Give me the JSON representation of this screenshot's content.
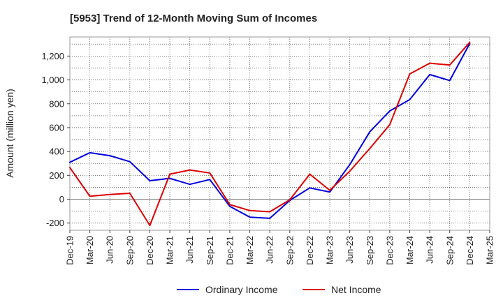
{
  "chart_data": {
    "type": "line",
    "title": "[5953]  Trend of 12-Month Moving Sum of Incomes",
    "xlabel": "",
    "ylabel": "Amount (million yen)",
    "ylim": [
      -260,
      1360
    ],
    "yticks": [
      -200,
      0,
      200,
      400,
      600,
      800,
      1000,
      1200
    ],
    "ytick_labels": [
      "-200",
      "0",
      "200",
      "400",
      "600",
      "800",
      "1,000",
      "1,200"
    ],
    "categories": [
      "Dec-19",
      "Mar-20",
      "Jun-20",
      "Sep-20",
      "Dec-20",
      "Mar-21",
      "Jun-21",
      "Sep-21",
      "Dec-21",
      "Mar-22",
      "Jun-22",
      "Sep-22",
      "Dec-22",
      "Mar-23",
      "Jun-23",
      "Sep-23",
      "Dec-23",
      "Mar-24",
      "Jun-24",
      "Sep-24",
      "Dec-24",
      "Mar-25"
    ],
    "grid": true,
    "legend_position": "bottom",
    "series": [
      {
        "name": "Ordinary Income",
        "color": "#0000dd",
        "values": [
          310,
          390,
          365,
          315,
          155,
          175,
          125,
          165,
          -60,
          -150,
          -160,
          -10,
          95,
          60,
          290,
          565,
          740,
          835,
          1045,
          995,
          1305,
          null
        ]
      },
      {
        "name": "Net Income",
        "color": "#dd0000",
        "values": [
          265,
          25,
          40,
          50,
          -220,
          210,
          245,
          220,
          -45,
          -95,
          -105,
          -5,
          210,
          75,
          235,
          425,
          625,
          1050,
          1140,
          1125,
          1315,
          null
        ]
      }
    ]
  }
}
